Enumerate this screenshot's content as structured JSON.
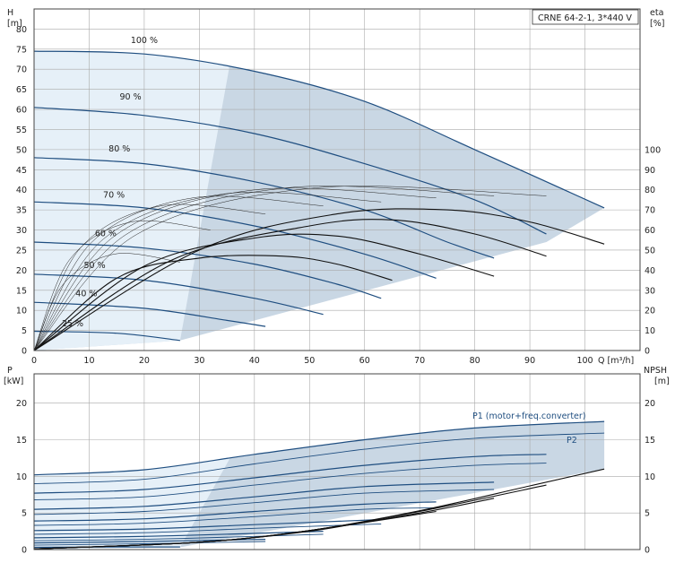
{
  "chart_data": [
    {
      "type": "line",
      "title": "CRNE 64-2-1, 3*440 V",
      "xlabel": "Q [m³/h]",
      "ylabel_left": [
        "H",
        "[m]"
      ],
      "ylabel_right": [
        "eta",
        "[%]"
      ],
      "xlim": [
        0,
        110
      ],
      "ylim": [
        0,
        85
      ],
      "xticks": [
        "0",
        "10",
        "20",
        "30",
        "40",
        "50",
        "60",
        "70",
        "80",
        "90",
        "100"
      ],
      "yticks_left": [
        "0",
        "5",
        "10",
        "15",
        "20",
        "25",
        "30",
        "35",
        "40",
        "45",
        "50",
        "55",
        "60",
        "65",
        "70",
        "75",
        "80"
      ],
      "yticks_right": [
        "0",
        "10",
        "20",
        "30",
        "40",
        "50",
        "60",
        "70",
        "80",
        "90",
        "100"
      ],
      "grid": true,
      "head_curves": [
        {
          "speed": "100 %",
          "label_at": [
            20,
            76.5
          ],
          "points": [
            [
              0,
              74.5
            ],
            [
              20,
              73.8
            ],
            [
              40,
              69.5
            ],
            [
              60,
              62
            ],
            [
              80,
              50
            ],
            [
              103.5,
              35.5
            ]
          ]
        },
        {
          "speed": "90 %",
          "label_at": [
            17.5,
            62.5
          ],
          "points": [
            [
              0,
              60.5
            ],
            [
              20,
              58.5
            ],
            [
              40,
              54
            ],
            [
              60,
              46.5
            ],
            [
              80,
              37.5
            ],
            [
              93,
              29
            ]
          ]
        },
        {
          "speed": "80 %",
          "label_at": [
            15.5,
            49.5
          ],
          "points": [
            [
              0,
              48
            ],
            [
              20,
              46.5
            ],
            [
              40,
              42
            ],
            [
              60,
              35
            ],
            [
              75,
              27
            ],
            [
              83.5,
              23
            ]
          ]
        },
        {
          "speed": "70 %",
          "label_at": [
            14.5,
            38
          ],
          "points": [
            [
              0,
              37
            ],
            [
              20,
              35.5
            ],
            [
              40,
              31
            ],
            [
              60,
              24
            ],
            [
              73,
              18
            ]
          ]
        },
        {
          "speed": "60 %",
          "label_at": [
            13,
            28.5
          ],
          "points": [
            [
              0,
              27
            ],
            [
              20,
              25.5
            ],
            [
              40,
              21.5
            ],
            [
              55,
              16.5
            ],
            [
              63,
              13
            ]
          ]
        },
        {
          "speed": "50 %",
          "label_at": [
            11,
            20.5
          ],
          "points": [
            [
              0,
              19
            ],
            [
              20,
              17.5
            ],
            [
              40,
              13
            ],
            [
              52.5,
              9
            ]
          ]
        },
        {
          "speed": "40 %",
          "label_at": [
            9.5,
            13.5
          ],
          "points": [
            [
              0,
              12
            ],
            [
              20,
              10.5
            ],
            [
              35,
              7.5
            ],
            [
              42,
              6
            ]
          ]
        },
        {
          "speed": "25 %",
          "label_at": [
            7,
            6
          ],
          "points": [
            [
              0,
              4.8
            ],
            [
              15,
              4.3
            ],
            [
              26.5,
              2.5
            ]
          ]
        }
      ],
      "efficiency_curves": [
        {
          "points": [
            [
              0,
              0
            ],
            [
              15,
              36
            ],
            [
              30,
              46
            ],
            [
              45,
              47
            ],
            [
              55,
              43
            ],
            [
              65,
              35
            ]
          ]
        },
        {
          "points": [
            [
              0,
              0
            ],
            [
              20,
              42
            ],
            [
              40,
              56
            ],
            [
              55,
              57
            ],
            [
              70,
              48
            ],
            [
              83.5,
              37
            ]
          ]
        },
        {
          "points": [
            [
              0,
              0
            ],
            [
              25,
              45
            ],
            [
              50,
              62
            ],
            [
              65,
              65
            ],
            [
              80,
              58
            ],
            [
              93,
              47
            ]
          ]
        },
        {
          "points": [
            [
              0,
              0
            ],
            [
              30,
              50
            ],
            [
              55,
              68
            ],
            [
              75,
              70
            ],
            [
              90,
              64
            ],
            [
              103.5,
              53
            ]
          ]
        }
      ],
      "upper_shade_edge": [
        [
          0,
          74.5
        ],
        [
          35.5,
          71
        ]
      ],
      "lower_shade_edge": [
        [
          0,
          0
        ],
        [
          26.5,
          2.5
        ]
      ]
    },
    {
      "type": "line",
      "ylabel_left": [
        "P",
        "[kW]"
      ],
      "ylabel_right": [
        "NPSH",
        "[m]"
      ],
      "xlim": [
        0,
        110
      ],
      "ylim": [
        0,
        24
      ],
      "yticks_left": [
        "0",
        "5",
        "10",
        "15",
        "20"
      ],
      "yticks_right": [
        "0",
        "5",
        "10",
        "15",
        "20"
      ],
      "grid": true,
      "series_labels": {
        "p1": "P1 (motor+freq.converter)",
        "p2": "P2"
      },
      "power_curves": [
        {
          "name": "P1",
          "points": [
            [
              0,
              10.2
            ],
            [
              20,
              10.9
            ],
            [
              40,
              13
            ],
            [
              60,
              15
            ],
            [
              80,
              16.6
            ],
            [
              103.5,
              17.5
            ]
          ]
        },
        {
          "name": "P2",
          "points": [
            [
              0,
              9
            ],
            [
              20,
              9.6
            ],
            [
              40,
              11.7
            ],
            [
              60,
              13.7
            ],
            [
              80,
              15.2
            ],
            [
              103.5,
              15.9
            ]
          ]
        },
        {
          "name": "P1",
          "points": [
            [
              0,
              7.7
            ],
            [
              20,
              8.2
            ],
            [
              40,
              9.8
            ],
            [
              60,
              11.5
            ],
            [
              80,
              12.7
            ],
            [
              93,
              13
            ]
          ]
        },
        {
          "name": "P2",
          "points": [
            [
              0,
              6.8
            ],
            [
              20,
              7.2
            ],
            [
              40,
              8.8
            ],
            [
              60,
              10.4
            ],
            [
              80,
              11.5
            ],
            [
              93,
              11.8
            ]
          ]
        },
        {
          "name": "P1",
          "points": [
            [
              0,
              5.5
            ],
            [
              20,
              5.9
            ],
            [
              40,
              7.2
            ],
            [
              60,
              8.6
            ],
            [
              83.5,
              9.2
            ]
          ]
        },
        {
          "name": "P2",
          "points": [
            [
              0,
              4.8
            ],
            [
              20,
              5.2
            ],
            [
              40,
              6.4
            ],
            [
              60,
              7.7
            ],
            [
              83.5,
              8.2
            ]
          ]
        },
        {
          "name": "P1",
          "points": [
            [
              0,
              3.9
            ],
            [
              20,
              4.2
            ],
            [
              40,
              5.2
            ],
            [
              60,
              6.2
            ],
            [
              73,
              6.5
            ]
          ]
        },
        {
          "name": "P2",
          "points": [
            [
              0,
              3.3
            ],
            [
              20,
              3.6
            ],
            [
              40,
              4.5
            ],
            [
              60,
              5.5
            ],
            [
              73,
              5.7
            ]
          ]
        },
        {
          "name": "P1",
          "points": [
            [
              0,
              2.6
            ],
            [
              20,
              2.8
            ],
            [
              40,
              3.4
            ],
            [
              63,
              4.1
            ]
          ]
        },
        {
          "name": "P2",
          "points": [
            [
              0,
              2.1
            ],
            [
              20,
              2.3
            ],
            [
              40,
              2.9
            ],
            [
              63,
              3.5
            ]
          ]
        },
        {
          "name": "P1",
          "points": [
            [
              0,
              1.6
            ],
            [
              20,
              1.8
            ],
            [
              40,
              2.2
            ],
            [
              52.5,
              2.5
            ]
          ]
        },
        {
          "name": "P2",
          "points": [
            [
              0,
              1.2
            ],
            [
              20,
              1.4
            ],
            [
              40,
              1.8
            ],
            [
              52.5,
              2.1
            ]
          ]
        },
        {
          "name": "P1",
          "points": [
            [
              0,
              0.9
            ],
            [
              20,
              1.1
            ],
            [
              42,
              1.4
            ]
          ]
        },
        {
          "name": "P2",
          "points": [
            [
              0,
              0.6
            ],
            [
              20,
              0.8
            ],
            [
              42,
              1.1
            ]
          ]
        },
        {
          "name": "P1",
          "points": [
            [
              0,
              0.3
            ],
            [
              15,
              0.35
            ],
            [
              26.5,
              0.35
            ]
          ]
        }
      ],
      "npsh_curves": [
        {
          "points": [
            [
              0,
              0.1
            ],
            [
              30,
              1
            ],
            [
              50,
              2.6
            ],
            [
              70,
              5.3
            ],
            [
              90,
              8.7
            ],
            [
              103.5,
              11
            ]
          ]
        },
        {
          "points": [
            [
              0,
              0.1
            ],
            [
              30,
              1
            ],
            [
              50,
              2.6
            ],
            [
              70,
              5.2
            ],
            [
              93,
              8.8
            ]
          ]
        },
        {
          "points": [
            [
              0,
              0.1
            ],
            [
              30,
              1
            ],
            [
              50,
              2.6
            ],
            [
              70,
              5
            ],
            [
              83.5,
              7
            ]
          ]
        },
        {
          "points": [
            [
              0,
              0.1
            ],
            [
              30,
              1
            ],
            [
              50,
              2.6
            ],
            [
              73,
              5.2
            ]
          ]
        },
        {
          "points": [
            [
              0,
              0.1
            ],
            [
              30,
              1
            ],
            [
              50,
              2.5
            ],
            [
              63,
              4.2
            ]
          ]
        }
      ],
      "upper_shade_edge": [
        [
          0,
          10.2
        ],
        [
          35.5,
          12.4
        ]
      ],
      "lower_shade_edge": [
        [
          0,
          0
        ],
        [
          26.5,
          0.3
        ]
      ]
    }
  ],
  "colors": {
    "shade": "#c9d7e4",
    "shade_light": "#e6f0f8",
    "head_line": "#1f4e80",
    "eff_line": "#111111",
    "grid": "#a9a9a9",
    "label_blue": "#1f4e80"
  }
}
